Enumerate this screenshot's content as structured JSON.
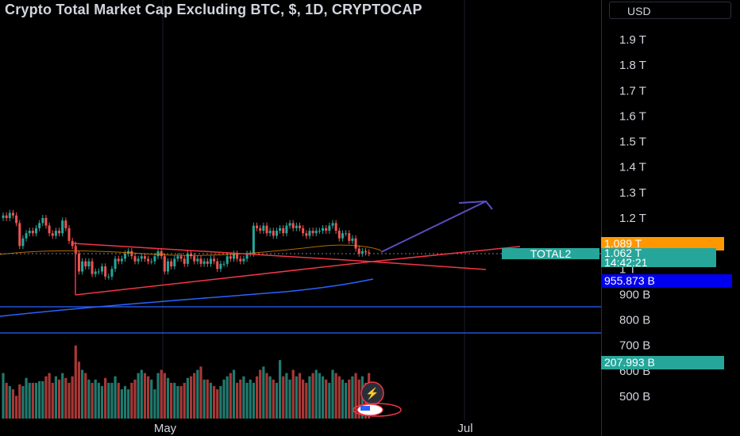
{
  "header": {
    "title": "Crypto Total Market Cap Excluding BTC, $, 1D, CRYPTOCAP",
    "currency_label": "USD"
  },
  "price_axis": {
    "ticks": [
      "1.9 T",
      "1.8 T",
      "1.7 T",
      "1.6 T",
      "1.5 T",
      "1.4 T",
      "1.3 T",
      "1.2 T",
      "1.1 T",
      "1 T",
      "900 B",
      "800 B",
      "700 B",
      "600 B",
      "500 B"
    ]
  },
  "labels": {
    "ma_value": "1.089 T",
    "symbol": "TOTAL2",
    "last_price": "1.062 T",
    "countdown": "14:42:21",
    "ma_slow_value": "955.873 B",
    "volume_value": "207.993 B"
  },
  "time_axis": {
    "ticks": [
      "May",
      "Jul"
    ]
  },
  "colors": {
    "up": "#26a69a",
    "down": "#ef5350",
    "volume_up": "#1f7a6e",
    "volume_down": "#a83836",
    "trendline": "#f23645",
    "arrow": "#5b4fc2",
    "support_line": "#2962ff",
    "ma_orange": "#ff9800",
    "ma_blue": "#2962ff",
    "axis_text": "#d1d4dc"
  },
  "chart_data": {
    "type": "candlestick",
    "title": "Crypto Total Market Cap Excluding BTC, $, 1D, CRYPTOCAP",
    "ylim": [
      0.44,
      1.99
    ],
    "y_unit": "T",
    "x_ticks": [
      "May",
      "Jul"
    ],
    "last_price": 1.062,
    "series_close": [
      1.21,
      1.2,
      1.22,
      1.21,
      1.18,
      1.09,
      1.12,
      1.14,
      1.15,
      1.14,
      1.16,
      1.18,
      1.2,
      1.17,
      1.14,
      1.13,
      1.15,
      1.14,
      1.19,
      1.16,
      1.11,
      1.09,
      1.06,
      0.99,
      1.03,
      1.01,
      1.03,
      0.98,
      0.99,
      0.99,
      1.01,
      0.97,
      0.97,
      1.0,
      1.04,
      1.03,
      1.04,
      1.06,
      1.07,
      1.05,
      1.03,
      1.04,
      1.05,
      1.04,
      1.03,
      1.03,
      1.05,
      1.07,
      1.05,
      0.99,
      1.03,
      1.01,
      1.04,
      1.05,
      1.04,
      1.02,
      1.06,
      1.05,
      1.03,
      1.04,
      1.02,
      1.03,
      1.02,
      1.04,
      1.03,
      1.0,
      1.02,
      1.02,
      1.05,
      1.04,
      1.06,
      1.04,
      1.03,
      1.04,
      1.06,
      1.06,
      1.17,
      1.16,
      1.15,
      1.17,
      1.14,
      1.15,
      1.13,
      1.15,
      1.16,
      1.14,
      1.17,
      1.18,
      1.16,
      1.17,
      1.16,
      1.14,
      1.13,
      1.15,
      1.14,
      1.15,
      1.15,
      1.16,
      1.15,
      1.17,
      1.18,
      1.15,
      1.12,
      1.14,
      1.14,
      1.11,
      1.12,
      1.08,
      1.06,
      1.07,
      1.065,
      1.062
    ],
    "volume": [
      28,
      22,
      20,
      18,
      14,
      21,
      20,
      25,
      22,
      22,
      22,
      23,
      23,
      26,
      28,
      22,
      26,
      24,
      28,
      25,
      22,
      26,
      45,
      35,
      30,
      28,
      24,
      22,
      24,
      22,
      20,
      25,
      22,
      22,
      26,
      22,
      18,
      20,
      18,
      22,
      24,
      28,
      30,
      28,
      26,
      24,
      18,
      28,
      30,
      28,
      25,
      22,
      22,
      20,
      20,
      22,
      25,
      26,
      28,
      30,
      32,
      24,
      24,
      22,
      20,
      18,
      20,
      24,
      26,
      28,
      30,
      22,
      24,
      26,
      22,
      24,
      22,
      26,
      30,
      32,
      28,
      26,
      24,
      22,
      36,
      26,
      28,
      24,
      30,
      26,
      28,
      24,
      22,
      26,
      28,
      30,
      28,
      26,
      24,
      22,
      30,
      28,
      26,
      24,
      22,
      24,
      26,
      28,
      24,
      26,
      22,
      28
    ],
    "moving_average_value": 1.089,
    "slow_moving_average_value": 0.955873,
    "volume_last": 207.993
  }
}
